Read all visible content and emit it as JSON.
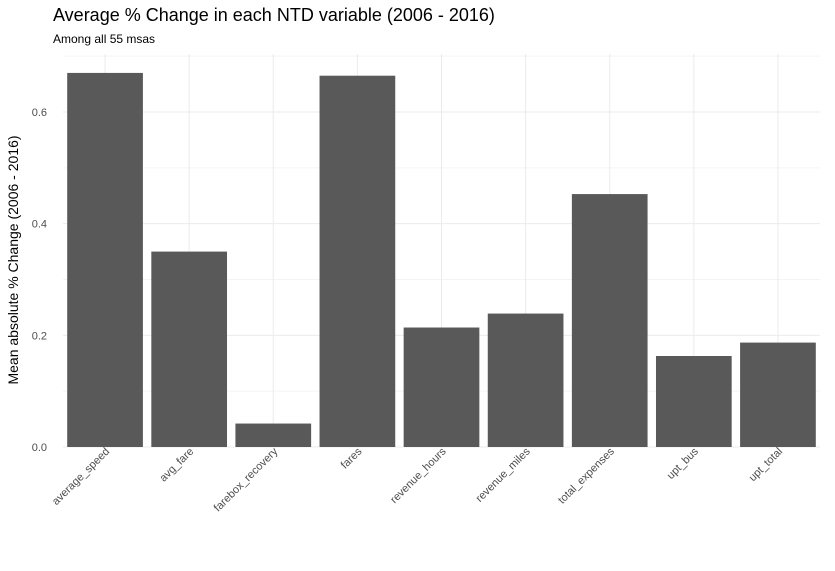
{
  "chart_data": {
    "type": "bar",
    "title": "Average % Change in each NTD variable (2006 - 2016)",
    "subtitle": "Among all 55 msas",
    "xlabel": "",
    "ylabel": "Mean absolute % Change (2006 - 2016)",
    "categories": [
      "average_speed",
      "avg_fare",
      "farebox_recovery",
      "fares",
      "revenue_hours",
      "revenue_miles",
      "total_expenses",
      "upt_bus",
      "upt_total"
    ],
    "values": [
      0.67,
      0.35,
      0.042,
      0.665,
      0.214,
      0.239,
      0.453,
      0.163,
      0.187
    ],
    "ylim": [
      0,
      0.7
    ],
    "yticks": [
      0.0,
      0.2,
      0.4,
      0.6
    ],
    "ytick_labels": [
      "0.0",
      "0.2",
      "0.4",
      "0.6"
    ],
    "grid": true,
    "bar_color": "#595959"
  }
}
